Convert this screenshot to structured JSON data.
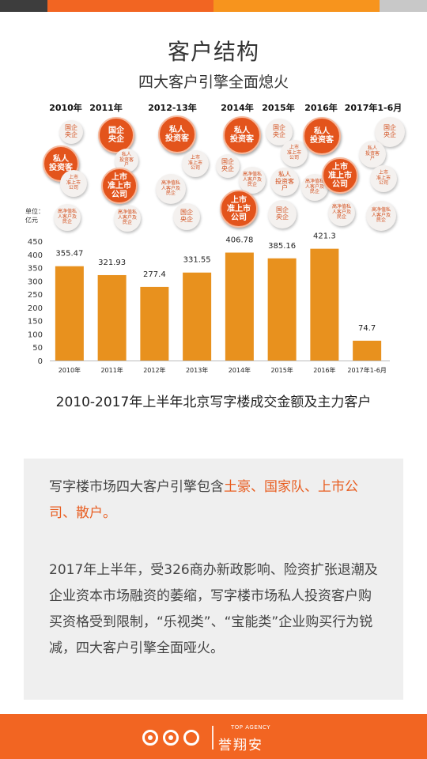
{
  "header": {
    "title": "客户结构",
    "subtitle": "四大客户引擎全面熄火"
  },
  "years": [
    "2010年",
    "2011年",
    "2012-13年",
    "2014年",
    "2015年",
    "2016年",
    "2017年1-6月"
  ],
  "bubbles": [
    {
      "text": "私人\n投资客",
      "style": "big"
    },
    {
      "text": "国企\n央企",
      "style": "small"
    },
    {
      "text": "上市\n准上市\n公司",
      "style": "tiny"
    },
    {
      "text": "高净值私\n人客户及\n民企",
      "style": "tiny"
    },
    {
      "text": "国企\n央企",
      "style": "big"
    },
    {
      "text": "私人\n投资客\n户",
      "style": "tiny"
    },
    {
      "text": "上市\n准上市\n公司",
      "style": "big"
    },
    {
      "text": "高净值私\n人客户及\n民企",
      "style": "tiny"
    },
    {
      "text": "私人\n投资客",
      "style": "big"
    },
    {
      "text": "上市\n准上市\n公司",
      "style": "tiny"
    },
    {
      "text": "高净值私\n人客户及\n民企",
      "style": "tiny"
    },
    {
      "text": "国企\n央企",
      "style": "small"
    },
    {
      "text": "私人\n投资客",
      "style": "big"
    },
    {
      "text": "国企\n央企",
      "style": "small"
    },
    {
      "text": "高净值私\n人客户及\n民企",
      "style": "tiny"
    },
    {
      "text": "上市\n准上市\n公司",
      "style": "big"
    },
    {
      "text": "国企\n央企",
      "style": "small"
    },
    {
      "text": "上市\n准上市\n公司",
      "style": "tiny"
    },
    {
      "text": "私人\n投资客\n户",
      "style": "small"
    },
    {
      "text": "高净值私\n人客户及\n民企",
      "style": "tiny"
    },
    {
      "text": "私人\n投资客",
      "style": "big"
    },
    {
      "text": "上市\n准上市\n公司",
      "style": "big"
    },
    {
      "text": "高净值私\n人客户及\n民企",
      "style": "tiny"
    },
    {
      "text": "国企\n央企",
      "style": "small"
    },
    {
      "text": "国企\n央企",
      "style": "small"
    },
    {
      "text": "私人\n投资客\n户",
      "style": "tiny"
    },
    {
      "text": "上市\n准上市\n公司",
      "style": "tiny"
    },
    {
      "text": "高净值私\n人客户及\n民企",
      "style": "tiny"
    }
  ],
  "chart_data": {
    "type": "bar",
    "unit_label": "单位：\n亿元",
    "categories": [
      "2010年",
      "2011年",
      "2012年",
      "2013年",
      "2014年",
      "2015年",
      "2016年",
      "2017年1-6月"
    ],
    "values": [
      355.47,
      321.93,
      277.4,
      331.55,
      406.78,
      385.16,
      421.3,
      74.7
    ],
    "value_labels": [
      "355.47",
      "321.93",
      "277.4",
      "331.55",
      "406.78",
      "385.16",
      "421.3",
      "74.7"
    ],
    "yticks": [
      "0",
      "50",
      "100",
      "150",
      "200",
      "250",
      "300",
      "350",
      "400",
      "450"
    ],
    "ylim": [
      0,
      450
    ],
    "bar_color": "#e8911e",
    "grid": false,
    "caption": "2010-2017年上半年北京写字楼成交金额及主力客户"
  },
  "info": {
    "para1_prefix": "写字楼市场四大客户引擎包含",
    "para1_highlight": "土豪、国家队、上市公司、散户。",
    "para2": "2017年上半年，受326商办新政影响、险资扩张退潮及企业资本市场融资的萎缩，写字楼市场私人投资客户购买资格受到限制，“乐视类”、“宝能类”企业购买行为锐减，四大客户引擎全面哑火。",
    "highlight_color": "#e85d20"
  },
  "footer": {
    "brand": "誉翔安",
    "tagline": "TOP AGENCY",
    "background": "#f26522"
  }
}
